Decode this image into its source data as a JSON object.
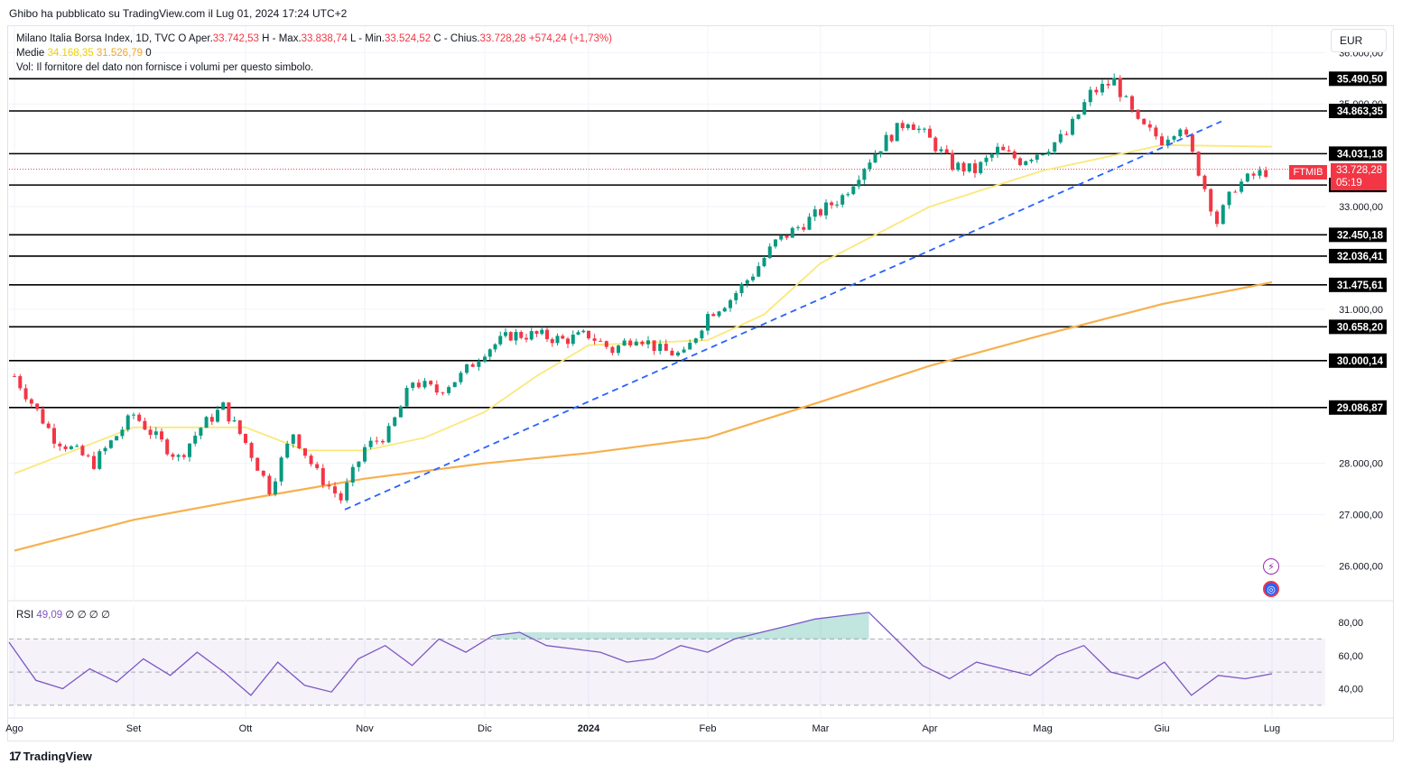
{
  "header": {
    "published": "Ghibo ha pubblicato su TradingView.com il Lug 01, 2024 17:24 UTC+2"
  },
  "legend": {
    "symbol": "Milano Italia Borsa Index, 1D, TVC",
    "open_label": "O",
    "open_prefix": "Aper.",
    "open": "33.742,53",
    "high_prefix": "H",
    "high_label": "Max.",
    "high": "33.838,74",
    "low_prefix": "L",
    "low_label": "Min.",
    "low": "33.524,52",
    "close_prefix": "C",
    "close_label": "Chius.",
    "close": "33.728,28",
    "change": "+574,24 (+1,73%)",
    "ma_label": "Medie",
    "ma_fast": "34.168,35",
    "ma_slow": "31.526,79",
    "ma_zero": "0",
    "vol_note": "Vol: Il fornitore del dato non fornisce i volumi per questo simbolo."
  },
  "currency": "EUR",
  "symbol_badge": "FTMIB",
  "price_badge": {
    "price": "33.728,28",
    "countdown": "05:19"
  },
  "rsi": {
    "label": "RSI",
    "value": "49,09",
    "params": "∅ ∅ ∅ ∅"
  },
  "brand": {
    "name": "TradingView",
    "logo": "17"
  },
  "icons": {
    "lightning": "lightning-icon",
    "globe": "globe-icon"
  },
  "colors": {
    "up": "#089981",
    "down": "#f23645",
    "ma_fast": "#fbe87a",
    "ma_slow": "#f7b04e",
    "trendline": "#2962ff",
    "rsi": "#7e57c2"
  },
  "chart_data": [
    {
      "type": "candlestick",
      "title": "Milano Italia Borsa Index, 1D, TVC",
      "ylim": [
        25500,
        36400
      ],
      "y_ticks": [
        26000,
        27000,
        28000,
        31000,
        33000,
        35000,
        36000
      ],
      "y_tick_labels": [
        "26.000,00",
        "27.000,00",
        "28.000,00",
        "31.000,00",
        "33.000,00",
        "35.000,00",
        "36.000,00"
      ],
      "x_tick_labels": [
        "Ago",
        "Set",
        "Ott",
        "Nov",
        "Dic",
        "2024",
        "Feb",
        "Mar",
        "Apr",
        "Mag",
        "Giu",
        "Lug"
      ],
      "horizontal_levels": [
        35490.5,
        34863.35,
        34031.18,
        33420.48,
        32450.18,
        32036.41,
        31475.61,
        30658.2,
        30000.14,
        29086.87
      ],
      "horizontal_level_labels": [
        "35.490,50",
        "34.863,35",
        "34.031,18",
        "33.420,48",
        "32.450,18",
        "32.036,41",
        "31.475,61",
        "30.658,20",
        "30.000,14",
        "29.086,87"
      ],
      "last_price": 33728.28,
      "trendline": {
        "start": {
          "month": "Ott",
          "value": 27100
        },
        "end": {
          "month": "Giu",
          "value": 34660
        }
      },
      "close_path": [
        {
          "x": "Ago",
          "y": 29700
        },
        {
          "x": "Ago",
          "y": 28500
        },
        {
          "x": "Ago",
          "y": 28000
        },
        {
          "x": "Set",
          "y": 28950
        },
        {
          "x": "Set",
          "y": 28500
        },
        {
          "x": "Set",
          "y": 28100
        },
        {
          "x": "Set",
          "y": 28700
        },
        {
          "x": "Set",
          "y": 29100
        },
        {
          "x": "Ott",
          "y": 28400
        },
        {
          "x": "Ott",
          "y": 27500
        },
        {
          "x": "Ott",
          "y": 28600
        },
        {
          "x": "Ott",
          "y": 27800
        },
        {
          "x": "Ott",
          "y": 27300
        },
        {
          "x": "Nov",
          "y": 28300
        },
        {
          "x": "Nov",
          "y": 28600
        },
        {
          "x": "Nov",
          "y": 29600
        },
        {
          "x": "Nov",
          "y": 29400
        },
        {
          "x": "Nov",
          "y": 29700
        },
        {
          "x": "Dic",
          "y": 30200
        },
        {
          "x": "Dic",
          "y": 30500
        },
        {
          "x": "Dic",
          "y": 30500
        },
        {
          "x": "Dic",
          "y": 30400
        },
        {
          "x": "2024",
          "y": 30500
        },
        {
          "x": "2024",
          "y": 30200
        },
        {
          "x": "2024",
          "y": 30500
        },
        {
          "x": "2024",
          "y": 30200
        },
        {
          "x": "2024",
          "y": 30100
        },
        {
          "x": "Feb",
          "y": 30900
        },
        {
          "x": "Feb",
          "y": 31200
        },
        {
          "x": "Feb",
          "y": 31700
        },
        {
          "x": "Feb",
          "y": 32300
        },
        {
          "x": "Feb",
          "y": 32600
        },
        {
          "x": "Mar",
          "y": 32900
        },
        {
          "x": "Mar",
          "y": 33200
        },
        {
          "x": "Mar",
          "y": 33800
        },
        {
          "x": "Mar",
          "y": 34300
        },
        {
          "x": "Mar",
          "y": 34700
        },
        {
          "x": "Apr",
          "y": 34300
        },
        {
          "x": "Apr",
          "y": 33800
        },
        {
          "x": "Apr",
          "y": 33700
        },
        {
          "x": "Apr",
          "y": 34100
        },
        {
          "x": "Apr",
          "y": 33900
        },
        {
          "x": "Mag",
          "y": 34100
        },
        {
          "x": "Mag",
          "y": 34400
        },
        {
          "x": "Mag",
          "y": 35200
        },
        {
          "x": "Mag",
          "y": 35450
        },
        {
          "x": "Mag",
          "y": 34600
        },
        {
          "x": "Giu",
          "y": 34300
        },
        {
          "x": "Giu",
          "y": 34600
        },
        {
          "x": "Giu",
          "y": 33700
        },
        {
          "x": "Giu",
          "y": 32700
        },
        {
          "x": "Giu",
          "y": 33400
        },
        {
          "x": "Giu",
          "y": 33600
        },
        {
          "x": "Lug",
          "y": 33728
        }
      ],
      "moving_average_fast": [
        {
          "x": "Ago",
          "y": 27800
        },
        {
          "x": "Set",
          "y": 28700
        },
        {
          "x": "Ott",
          "y": 28700
        },
        {
          "x": "Ott",
          "y": 28250
        },
        {
          "x": "Nov",
          "y": 28250
        },
        {
          "x": "Nov",
          "y": 28500
        },
        {
          "x": "Dic",
          "y": 29000
        },
        {
          "x": "Dic",
          "y": 29700
        },
        {
          "x": "2024",
          "y": 30300
        },
        {
          "x": "Feb",
          "y": 30400
        },
        {
          "x": "Feb",
          "y": 30900
        },
        {
          "x": "Mar",
          "y": 31900
        },
        {
          "x": "Apr",
          "y": 33000
        },
        {
          "x": "Mag",
          "y": 33700
        },
        {
          "x": "Giu",
          "y": 34200
        },
        {
          "x": "Lug",
          "y": 34168
        }
      ],
      "moving_average_slow": [
        {
          "x": "Ago",
          "y": 26300
        },
        {
          "x": "Set",
          "y": 26900
        },
        {
          "x": "Ott",
          "y": 27300
        },
        {
          "x": "Nov",
          "y": 27700
        },
        {
          "x": "Dic",
          "y": 28000
        },
        {
          "x": "2024",
          "y": 28200
        },
        {
          "x": "Feb",
          "y": 28500
        },
        {
          "x": "Mar",
          "y": 29200
        },
        {
          "x": "Apr",
          "y": 29900
        },
        {
          "x": "Mag",
          "y": 30500
        },
        {
          "x": "Giu",
          "y": 31100
        },
        {
          "x": "Lug",
          "y": 31527
        }
      ]
    },
    {
      "type": "line",
      "title": "RSI",
      "ylim": [
        30,
        85
      ],
      "y_ticks": [
        40,
        60,
        80
      ],
      "y_tick_labels": [
        "40,00",
        "60,00",
        "80,00"
      ],
      "band": [
        30,
        70
      ],
      "last_value": 49.09,
      "series": [
        {
          "values": [
            68,
            45,
            40,
            52,
            44,
            58,
            48,
            62,
            50,
            36,
            56,
            42,
            38,
            58,
            66,
            54,
            70,
            62,
            72,
            74,
            66,
            64,
            62,
            56,
            58,
            66,
            62,
            70,
            74,
            78,
            82,
            84,
            86,
            70,
            54,
            46,
            56,
            52,
            48,
            60,
            66,
            50,
            46,
            56,
            36,
            48,
            46,
            49
          ]
        }
      ]
    }
  ]
}
